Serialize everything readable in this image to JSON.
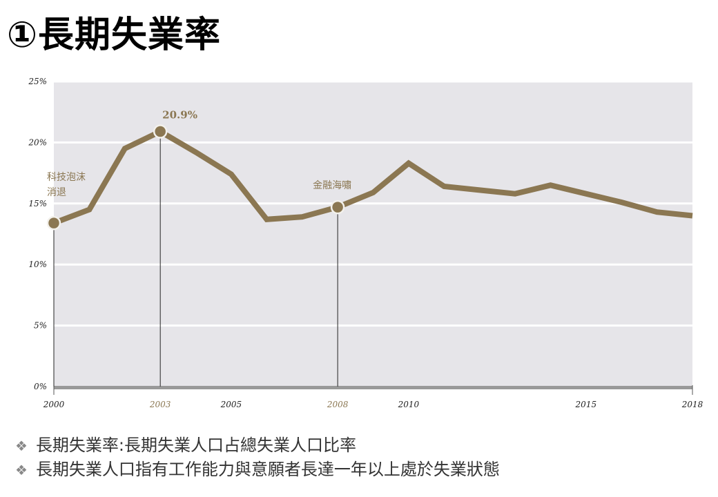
{
  "title": "①長期失業率",
  "chart_data": {
    "type": "line",
    "x": [
      2000,
      2001,
      2002,
      2003,
      2004,
      2005,
      2006,
      2007,
      2008,
      2009,
      2010,
      2011,
      2012,
      2013,
      2014,
      2015,
      2016,
      2017,
      2018
    ],
    "series": [
      {
        "values": [
          13.4,
          14.5,
          19.5,
          20.9,
          19.2,
          17.4,
          13.7,
          13.9,
          14.7,
          15.9,
          18.3,
          16.4,
          16.1,
          15.8,
          16.5,
          15.8,
          15.1,
          14.3,
          14.0
        ]
      }
    ],
    "xlim": [
      2000,
      2018
    ],
    "ylim": [
      0,
      25
    ],
    "xticks": [
      {
        "value": 2000,
        "label": "2000",
        "highlight": false
      },
      {
        "value": 2003,
        "label": "2003",
        "highlight": true
      },
      {
        "value": 2005,
        "label": "2005",
        "highlight": false
      },
      {
        "value": 2008,
        "label": "2008",
        "highlight": true
      },
      {
        "value": 2010,
        "label": "2010",
        "highlight": false
      },
      {
        "value": 2015,
        "label": "2015",
        "highlight": false
      },
      {
        "value": 2018,
        "label": "2018",
        "highlight": false
      }
    ],
    "yticks": [
      {
        "value": 0,
        "label": "0%"
      },
      {
        "value": 5,
        "label": "5%"
      },
      {
        "value": 10,
        "label": "10%"
      },
      {
        "value": 15,
        "label": "15%"
      },
      {
        "value": 20,
        "label": "20%"
      },
      {
        "value": 25,
        "label": "25%"
      }
    ],
    "grid": true,
    "annotations": [
      {
        "x": 2000,
        "y": 13.4,
        "text": "科技泡沫\n消退",
        "name": "annotation-dotcom"
      },
      {
        "x": 2003,
        "y": 20.9,
        "text": "20.9%",
        "name": "annotation-peak"
      },
      {
        "x": 2008,
        "y": 14.7,
        "text": "金融海嘯",
        "name": "annotation-financial-crisis"
      }
    ],
    "colors": {
      "line": "#8b7752",
      "plot_bg": "#e6e5e9",
      "grid": "#ffffff",
      "axis": "#999999",
      "annotation_text": "#8b7752",
      "tick_text": "#222222",
      "highlight_tick_text": "#8b7752"
    }
  },
  "notes": [
    {
      "bullet": "❖",
      "text": "長期失業率:長期失業人口占總失業人口比率"
    },
    {
      "bullet": "❖",
      "text": "長期失業人口指有工作能力與意願者長達一年以上處於失業狀態"
    }
  ]
}
